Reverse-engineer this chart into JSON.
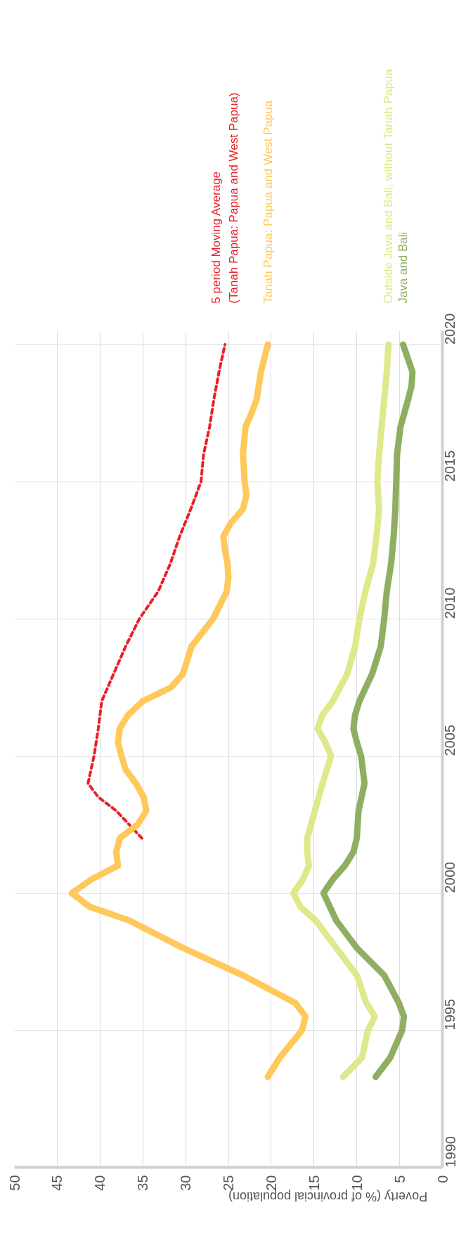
{
  "chart_data": {
    "type": "line",
    "xlabel": "Poverty (% of provincial population)",
    "xlim": [
      50,
      0
    ],
    "xticks": [
      0,
      5,
      10,
      15,
      20,
      25,
      30,
      35,
      40,
      45,
      50
    ],
    "ylim": [
      1990,
      2020
    ],
    "yticks": [
      1990,
      1995,
      2000,
      2005,
      2010,
      2015,
      2020
    ],
    "grid": true,
    "legend": "top",
    "marker": "none",
    "series": [
      {
        "name": "5 period Moving Average\n(Tanah Papua: Papua and West Papua)",
        "color": "#e8202a",
        "line_style": "dashed",
        "values": [
          2002,
          2003,
          2003.5,
          2004,
          2005,
          2006,
          2007,
          2008,
          2009,
          2010,
          2011,
          2012,
          2013,
          2014,
          2015,
          2016,
          2017,
          2018,
          2019,
          2020
        ],
        "x": [
          35.1,
          38.1,
          40.2,
          41.4,
          40.7,
          40.2,
          39.8,
          38.4,
          37.0,
          35.4,
          33.2,
          31.8,
          30.7,
          29.4,
          28.2,
          27.9,
          27.2,
          26.7,
          26.1,
          25.4
        ]
      },
      {
        "name": "Tanah Papua: Papua and West Papua",
        "color": "#ffc85a",
        "line_style": "solid",
        "values": [
          1993.3,
          1994,
          1995,
          1995.5,
          1996,
          1997,
          1998,
          1999,
          1999.5,
          2000,
          2000.5,
          2001,
          2001.5,
          2002,
          2002.5,
          2003,
          2003.5,
          2004,
          2004.5,
          2005,
          2005.5,
          2006,
          2006.5,
          2007,
          2007.5,
          2008,
          2008.5,
          2009,
          2010,
          2011,
          2011.5,
          2012,
          2012.5,
          2013,
          2013.5,
          2014,
          2014.5,
          2015,
          2016,
          2017,
          2017.5,
          2018,
          2019,
          2020
        ],
        "x": [
          20.4,
          19.0,
          16.4,
          16.0,
          17.2,
          23.3,
          30.3,
          36.6,
          41.2,
          43.3,
          41.0,
          37.9,
          38.1,
          37.7,
          35.6,
          34.6,
          34.9,
          35.8,
          37.0,
          37.5,
          37.9,
          37.7,
          36.7,
          35.0,
          31.7,
          30.3,
          29.8,
          29.3,
          26.8,
          25.2,
          25.0,
          25.1,
          25.4,
          25.6,
          24.7,
          23.3,
          22.9,
          23.1,
          23.3,
          23.0,
          22.3,
          21.7,
          21.2,
          20.4
        ]
      },
      {
        "name": "Outside Java and Bali, without Tanah Papua",
        "color": "#dfe88a",
        "line_style": "solid",
        "values": [
          1993.3,
          1994,
          1995,
          1995.5,
          1996,
          1997,
          1998,
          1999,
          1999.5,
          2000,
          2000.5,
          2001,
          2001.5,
          2002,
          2003,
          2004,
          2005,
          2005.5,
          2006,
          2006.5,
          2007,
          2008,
          2009,
          2010,
          2011,
          2012,
          2013,
          2014,
          2015,
          2016,
          2017,
          2018,
          2019,
          2020
        ],
        "x": [
          11.6,
          9.4,
          8.7,
          7.9,
          8.9,
          10.0,
          12.4,
          14.8,
          16.6,
          17.4,
          16.3,
          15.6,
          15.8,
          15.8,
          14.9,
          14.0,
          13.0,
          13.7,
          14.6,
          14.0,
          12.8,
          11.1,
          10.2,
          9.7,
          9.0,
          8.1,
          7.7,
          7.4,
          7.6,
          7.4,
          7.1,
          6.8,
          6.5,
          6.3
        ]
      },
      {
        "name": "Java and Bali",
        "color": "#8fae62",
        "line_style": "solid",
        "values": [
          1993.3,
          1994,
          1995,
          1995.5,
          1996,
          1997,
          1998,
          1999,
          2000,
          2000.5,
          2001,
          2001.5,
          2002,
          2003,
          2004,
          2005,
          2005.5,
          2006,
          2006.5,
          2007,
          2008,
          2009,
          2010,
          2011,
          2012,
          2013,
          2014,
          2015,
          2016,
          2017,
          2018,
          2018.5,
          2019,
          2020
        ],
        "x": [
          7.8,
          6.1,
          4.7,
          4.5,
          5.1,
          6.8,
          10.0,
          12.4,
          13.9,
          12.8,
          11.4,
          10.4,
          10.0,
          9.8,
          9.1,
          9.5,
          10.0,
          10.4,
          10.2,
          9.7,
          8.2,
          7.2,
          6.8,
          6.5,
          6.0,
          5.7,
          5.5,
          5.4,
          5.3,
          4.9,
          4.0,
          3.6,
          3.5,
          4.6
        ]
      }
    ]
  }
}
